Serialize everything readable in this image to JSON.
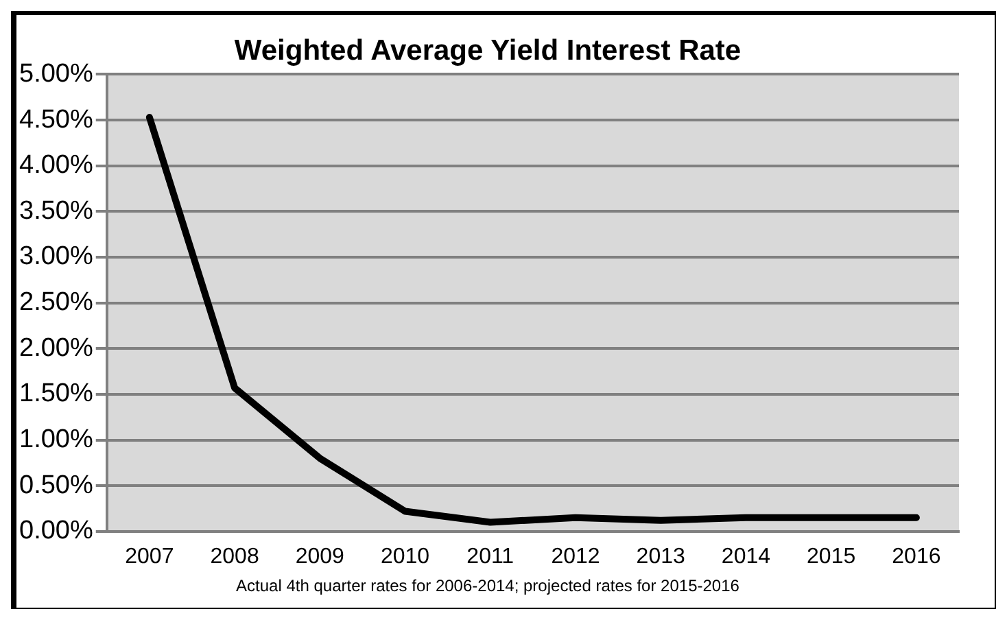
{
  "chart_data": {
    "type": "line",
    "title": "Weighted Average Yield Interest Rate",
    "categories": [
      "2007",
      "2008",
      "2009",
      "2010",
      "2011",
      "2012",
      "2013",
      "2014",
      "2015",
      "2016"
    ],
    "series": [
      {
        "color": "#000000",
        "values": [
          4.53,
          1.57,
          0.8,
          0.22,
          0.1,
          0.15,
          0.12,
          0.15,
          0.15,
          0.15
        ]
      }
    ],
    "ylim": [
      0,
      5
    ],
    "yticks": [
      {
        "value": 0,
        "label": "0.00%"
      },
      {
        "value": 0.5,
        "label": "0.50%"
      },
      {
        "value": 1,
        "label": "1.00%"
      },
      {
        "value": 1.5,
        "label": "1.50%"
      },
      {
        "value": 2,
        "label": "2.00%"
      },
      {
        "value": 2.5,
        "label": "2.50%"
      },
      {
        "value": 3,
        "label": "3.00%"
      },
      {
        "value": 3.5,
        "label": "3.50%"
      },
      {
        "value": 4,
        "label": "4.00%"
      },
      {
        "value": 4.5,
        "label": "4.50%"
      },
      {
        "value": 5,
        "label": "5.00%"
      }
    ],
    "grid": "y",
    "legend": false,
    "marker": "none",
    "line_style": "solid",
    "annotations": [
      "Actual 4th quarter rates for 2006-2014; projected rates for 2015-2016"
    ]
  }
}
